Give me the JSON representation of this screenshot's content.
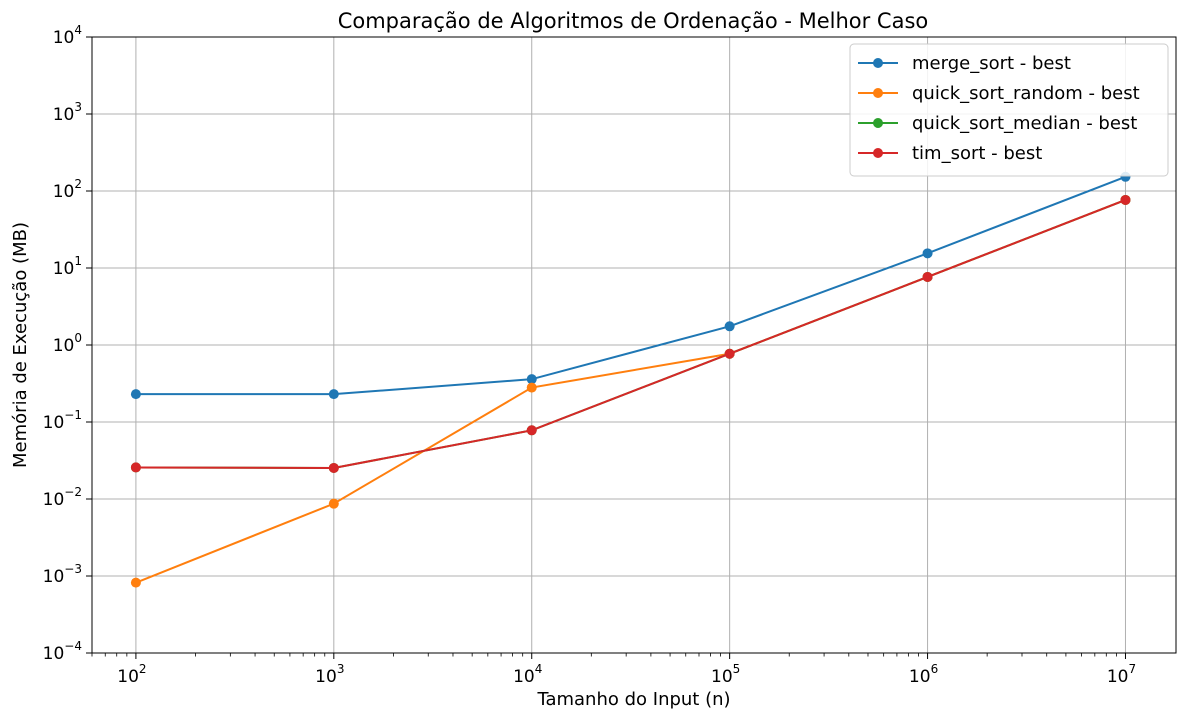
{
  "chart_data": {
    "type": "line",
    "title": "Comparação de Algoritmos de Ordenação - Melhor Caso",
    "xlabel": "Tamanho do Input (n)",
    "ylabel": "Memória de Execução (MB)",
    "xscale": "log",
    "yscale": "log",
    "xlim": [
      60,
      18000000
    ],
    "ylim": [
      0.0001,
      10000
    ],
    "grid": true,
    "legend_position": "top-right",
    "x": [
      100,
      1000,
      10000,
      100000,
      1000000,
      10000000
    ],
    "x_ticks": [
      {
        "base": "10",
        "exp": "2"
      },
      {
        "base": "10",
        "exp": "3"
      },
      {
        "base": "10",
        "exp": "4"
      },
      {
        "base": "10",
        "exp": "5"
      },
      {
        "base": "10",
        "exp": "6"
      },
      {
        "base": "10",
        "exp": "7"
      }
    ],
    "y_ticks": [
      {
        "base": "10",
        "exp": "−4"
      },
      {
        "base": "10",
        "exp": "−3"
      },
      {
        "base": "10",
        "exp": "−2"
      },
      {
        "base": "10",
        "exp": "−1"
      },
      {
        "base": "10",
        "exp": "0"
      },
      {
        "base": "10",
        "exp": "1"
      },
      {
        "base": "10",
        "exp": "2"
      },
      {
        "base": "10",
        "exp": "3"
      },
      {
        "base": "10",
        "exp": "4"
      }
    ],
    "series": [
      {
        "name": "merge_sort - best",
        "color": "#1f77b4",
        "values": [
          0.23,
          0.23,
          0.36,
          1.75,
          15.5,
          153
        ]
      },
      {
        "name": "quick_sort_random - best",
        "color": "#ff7f0e",
        "values": [
          0.00082,
          0.0087,
          0.28,
          0.77,
          7.65,
          76.5
        ]
      },
      {
        "name": "quick_sort_median - best",
        "color": "#2ca02c",
        "values": [
          0.0257,
          0.0253,
          0.078,
          0.77,
          7.65,
          76.5
        ]
      },
      {
        "name": "tim_sort - best",
        "color": "#d62728",
        "values": [
          0.0257,
          0.0253,
          0.078,
          0.77,
          7.65,
          76.5
        ]
      }
    ]
  }
}
